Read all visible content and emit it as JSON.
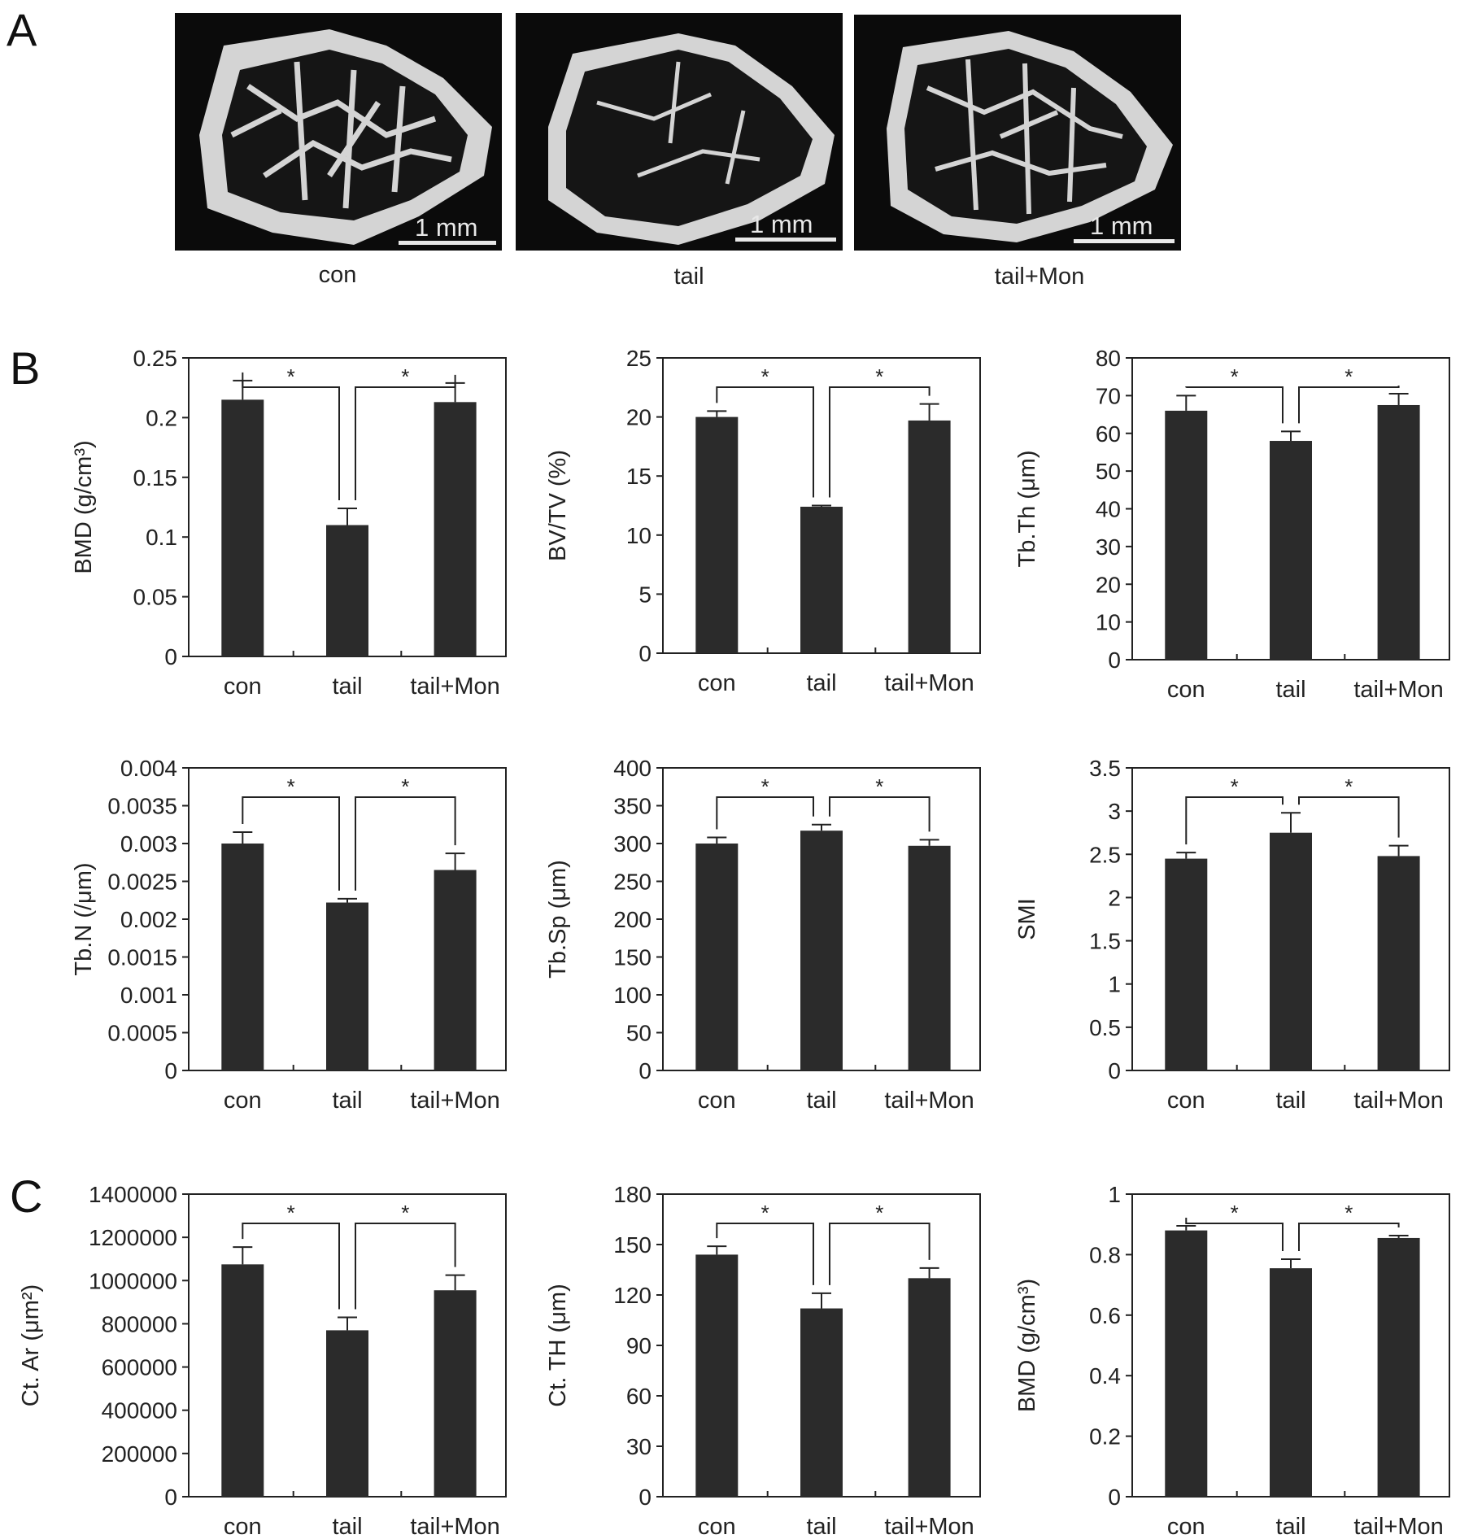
{
  "panel_labels": {
    "a": "A",
    "b": "B",
    "c": "C"
  },
  "panel_a": {
    "images": [
      {
        "label": "con",
        "scale_label": "1 mm"
      },
      {
        "label": "tail",
        "scale_label": "1 mm"
      },
      {
        "label": "tail+Mon",
        "scale_label": "1 mm"
      }
    ]
  },
  "colors": {
    "bar": "#2b2b2b",
    "axis": "#222222",
    "image_bg": "#0b0b0b",
    "bone": "#d8d8d8"
  },
  "chart_data": [
    {
      "panel": "B",
      "type": "bar",
      "categories": [
        "con",
        "tail",
        "tail+Mon"
      ],
      "ylabel": "BMD (g/cm³)",
      "ylim": [
        0,
        0.25
      ],
      "yticks": [
        "0",
        "0.05",
        "0.1",
        "0.15",
        "0.2",
        "0.25"
      ],
      "values": [
        0.215,
        0.11,
        0.213
      ],
      "errors": [
        0.016,
        0.014,
        0.016
      ],
      "significance": [
        "*",
        "*"
      ]
    },
    {
      "panel": "B",
      "type": "bar",
      "categories": [
        "con",
        "tail",
        "tail+Mon"
      ],
      "ylabel": "BV/TV (%)",
      "ylim": [
        0,
        25
      ],
      "yticks": [
        "0",
        "5",
        "10",
        "15",
        "20",
        "25"
      ],
      "values": [
        20.0,
        12.4,
        19.7
      ],
      "errors": [
        0.5,
        0.1,
        1.4
      ],
      "significance": [
        "*",
        "*"
      ]
    },
    {
      "panel": "B",
      "type": "bar",
      "categories": [
        "con",
        "tail",
        "tail+Mon"
      ],
      "ylabel": "Tb.Th (μm)",
      "ylim": [
        0,
        80
      ],
      "yticks": [
        "0",
        "10",
        "20",
        "30",
        "40",
        "50",
        "60",
        "70",
        "80"
      ],
      "values": [
        66,
        58,
        67.5
      ],
      "errors": [
        4,
        2.5,
        3
      ],
      "significance": [
        "*",
        "*"
      ]
    },
    {
      "panel": "B",
      "type": "bar",
      "categories": [
        "con",
        "tail",
        "tail+Mon"
      ],
      "ylabel": "Tb.N (/μm)",
      "ylim": [
        0,
        0.004
      ],
      "yticks": [
        "0",
        "0.0005",
        "0.001",
        "0.0015",
        "0.002",
        "0.0025",
        "0.003",
        "0.0035",
        "0.004"
      ],
      "values": [
        0.003,
        0.00222,
        0.00265
      ],
      "errors": [
        0.00015,
        5e-05,
        0.00022
      ],
      "significance": [
        "*",
        "*"
      ]
    },
    {
      "panel": "B",
      "type": "bar",
      "categories": [
        "con",
        "tail",
        "tail+Mon"
      ],
      "ylabel": "Tb.Sp (μm)",
      "ylim": [
        0,
        400
      ],
      "yticks": [
        "0",
        "50",
        "100",
        "150",
        "200",
        "250",
        "300",
        "350",
        "400"
      ],
      "values": [
        300,
        317,
        297
      ],
      "errors": [
        8,
        8,
        8
      ],
      "significance": [
        "*",
        "*"
      ]
    },
    {
      "panel": "B",
      "type": "bar",
      "categories": [
        "con",
        "tail",
        "tail+Mon"
      ],
      "ylabel": "SMI",
      "ylim": [
        0,
        3.5
      ],
      "yticks": [
        "0",
        "0.5",
        "1",
        "1.5",
        "2",
        "2.5",
        "3",
        "3.5"
      ],
      "values": [
        2.45,
        2.75,
        2.48
      ],
      "errors": [
        0.07,
        0.23,
        0.12
      ],
      "significance": [
        "*",
        "*"
      ]
    },
    {
      "panel": "C",
      "type": "bar",
      "categories": [
        "con",
        "tail",
        "tail+Mon"
      ],
      "ylabel": "Ct. Ar (μm²)",
      "ylim": [
        0,
        1400000
      ],
      "yticks": [
        "0",
        "200000",
        "400000",
        "600000",
        "800000",
        "1000000",
        "1200000",
        "1400000"
      ],
      "values": [
        1075000,
        770000,
        955000
      ],
      "errors": [
        80000,
        60000,
        70000
      ],
      "significance": [
        "*",
        "*"
      ]
    },
    {
      "panel": "C",
      "type": "bar",
      "categories": [
        "con",
        "tail",
        "tail+Mon"
      ],
      "ylabel": "Ct. TH (μm)",
      "ylim": [
        0,
        180
      ],
      "yticks": [
        "0",
        "30",
        "60",
        "90",
        "120",
        "150",
        "180"
      ],
      "values": [
        144,
        112,
        130
      ],
      "errors": [
        5,
        9,
        6
      ],
      "significance": [
        "*",
        "*"
      ]
    },
    {
      "panel": "C",
      "type": "bar",
      "categories": [
        "con",
        "tail",
        "tail+Mon"
      ],
      "ylabel": "BMD (g/cm³)",
      "ylim": [
        0,
        1.0
      ],
      "yticks": [
        "0",
        "0.2",
        "0.4",
        "0.6",
        "0.8",
        "1"
      ],
      "values": [
        0.88,
        0.755,
        0.855
      ],
      "errors": [
        0.015,
        0.03,
        0.008
      ],
      "significance": [
        "*",
        "*"
      ]
    }
  ]
}
